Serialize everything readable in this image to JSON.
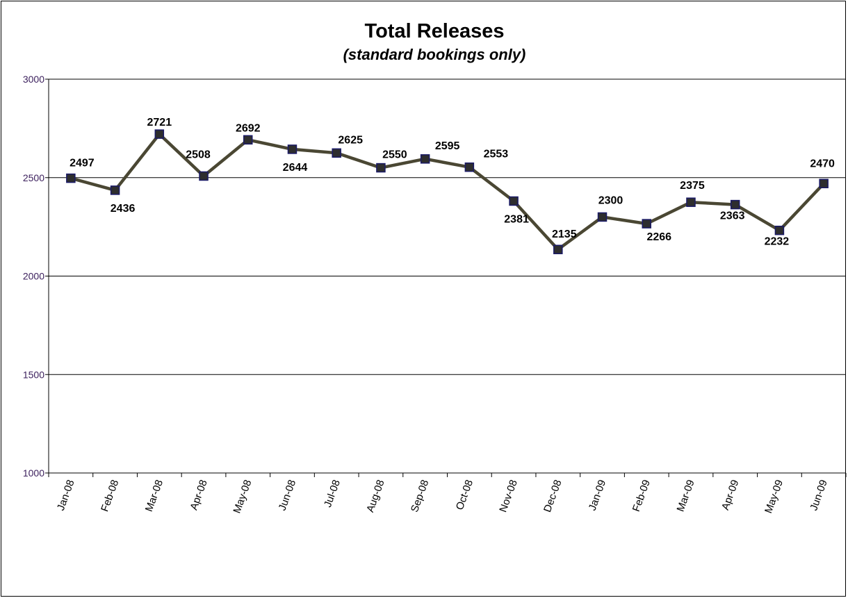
{
  "chart_data": {
    "type": "line",
    "title": "Total Releases",
    "subtitle": "(standard bookings only)",
    "xlabel": "",
    "ylabel": "",
    "ylim": [
      1000,
      3000
    ],
    "yticks": [
      1000,
      1500,
      2000,
      2500,
      3000
    ],
    "grid": "horizontal",
    "legend": "none",
    "categories": [
      "Jan-08",
      "Feb-08",
      "Mar-08",
      "Apr-08",
      "May-08",
      "Jun-08",
      "Jul-08",
      "Aug-08",
      "Sep-08",
      "Oct-08",
      "Nov-08",
      "Dec-08",
      "Jan-09",
      "Feb-09",
      "Mar-09",
      "Apr-09",
      "May-09",
      "Jun-09"
    ],
    "series": [
      {
        "values": [
          2497,
          2436,
          2721,
          2508,
          2692,
          2644,
          2625,
          2550,
          2595,
          2553,
          2381,
          2135,
          2300,
          2266,
          2375,
          2363,
          2232,
          2470
        ],
        "line_color": "#4a4733",
        "marker_color": "#2e2e2e",
        "marker_edge": "#1a1a66"
      }
    ]
  }
}
